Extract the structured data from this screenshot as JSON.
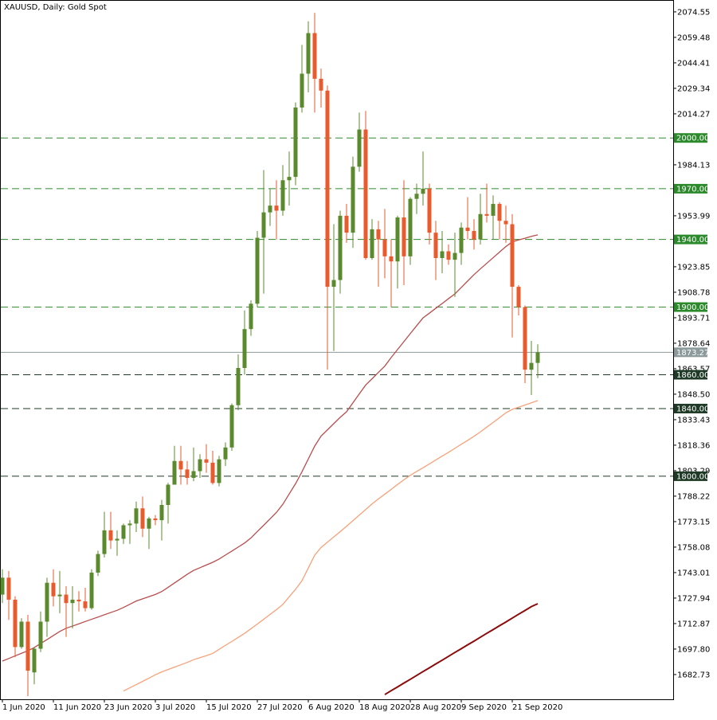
{
  "chart_data": {
    "type": "candlestick",
    "title": "XAUUSD, Daily:  Gold Spot",
    "categories": [
      "1 Jun 2020",
      null,
      null,
      null,
      null,
      null,
      null,
      null,
      "11 Jun 2020",
      null,
      null,
      null,
      null,
      null,
      null,
      null,
      "23 Jun 2020",
      null,
      null,
      null,
      null,
      null,
      null,
      null,
      "3 Jul 2020",
      null,
      null,
      null,
      null,
      null,
      null,
      null,
      "15 Jul 2020",
      null,
      null,
      null,
      null,
      null,
      null,
      null,
      "27 Jul 2020",
      null,
      null,
      null,
      null,
      null,
      null,
      null,
      "6 Aug 2020",
      null,
      null,
      null,
      null,
      null,
      null,
      null,
      "18 Aug 2020",
      null,
      null,
      null,
      null,
      null,
      null,
      null,
      "28 Aug 2020",
      null,
      null,
      null,
      null,
      null,
      null,
      null,
      "9 Sep 2020",
      null,
      null,
      null,
      null,
      null,
      null,
      null,
      "21 Sep 2020",
      null,
      null,
      null,
      null
    ],
    "open": [
      1730,
      1740,
      1727,
      1699,
      1714,
      1684,
      1698,
      1714,
      1737,
      1729,
      1730,
      1725,
      1727,
      1726,
      1722,
      1743,
      1754,
      1768,
      1762,
      1763,
      1771,
      1772,
      1781,
      1769,
      1775,
      1774,
      1783,
      1795,
      1809,
      1804,
      1799,
      1803,
      1810,
      1808,
      1796,
      1810,
      1817,
      1842,
      1864,
      1887,
      1902,
      1941,
      1956,
      1960,
      1957,
      1975,
      1977,
      2018,
      2038,
      2062,
      2035,
      2028,
      1912,
      1916,
      1954,
      1944,
      1983,
      2005,
      1929,
      1946,
      1940,
      1930,
      1927,
      1953,
      1930,
      1964,
      1967,
      1970,
      1944,
      1929,
      1933,
      1928,
      1932,
      1947,
      1945,
      1940,
      1955,
      1954,
      1961,
      1951,
      1949,
      1912,
      1900,
      1863,
      1867
    ],
    "high": [
      1745,
      1744,
      1729,
      1716,
      1718,
      1699,
      1720,
      1740,
      1745,
      1744,
      1735,
      1735,
      1732,
      1734,
      1745,
      1756,
      1779,
      1779,
      1768,
      1772,
      1774,
      1785,
      1788,
      1776,
      1777,
      1786,
      1796,
      1818,
      1818,
      1809,
      1817,
      1813,
      1819,
      1815,
      1812,
      1820,
      1843,
      1872,
      1898,
      1904,
      1945,
      1981,
      1970,
      1975,
      1984,
      1992,
      2021,
      2055,
      2069,
      2074,
      2041,
      2031,
      1949,
      1957,
      1961,
      1989,
      2015,
      2016,
      1952,
      1951,
      1958,
      1940,
      1954,
      1975,
      1965,
      1973,
      1992,
      1973,
      1951,
      1945,
      1937,
      1944,
      1950,
      1965,
      1952,
      1967,
      1973,
      1966,
      1962,
      1960,
      1955,
      1913,
      1901,
      1880,
      1878
    ],
    "low": [
      1725,
      1715,
      1693,
      1698,
      1670,
      1677,
      1696,
      1705,
      1723,
      1719,
      1705,
      1710,
      1720,
      1720,
      1721,
      1741,
      1752,
      1757,
      1753,
      1760,
      1760,
      1767,
      1764,
      1757,
      1771,
      1762,
      1772,
      1795,
      1795,
      1795,
      1797,
      1799,
      1802,
      1795,
      1794,
      1806,
      1815,
      1839,
      1860,
      1883,
      1900,
      1908,
      1948,
      1940,
      1954,
      1960,
      1972,
      2015,
      2027,
      2015,
      2018,
      1863,
      1874,
      1908,
      1938,
      1935,
      1980,
      1928,
      1928,
      1912,
      1917,
      1900,
      1911,
      1913,
      1925,
      1955,
      1960,
      1937,
      1916,
      1920,
      1925,
      1906,
      1925,
      1940,
      1934,
      1937,
      1950,
      1940,
      1940,
      1938,
      1882,
      1895,
      1855,
      1848,
      1858
    ],
    "close": [
      1740,
      1727,
      1699,
      1714,
      1685,
      1698,
      1714,
      1737,
      1729,
      1730,
      1725,
      1727,
      1726,
      1722,
      1743,
      1754,
      1768,
      1762,
      1763,
      1771,
      1772,
      1781,
      1769,
      1775,
      1774,
      1783,
      1795,
      1809,
      1804,
      1799,
      1803,
      1810,
      1808,
      1796,
      1810,
      1817,
      1842,
      1864,
      1887,
      1902,
      1941,
      1956,
      1960,
      1957,
      1975,
      1977,
      2018,
      2038,
      2062,
      2035,
      2028,
      1912,
      1916,
      1954,
      1944,
      1983,
      2005,
      1929,
      1946,
      1940,
      1930,
      1927,
      1953,
      1930,
      1964,
      1967,
      1970,
      1944,
      1929,
      1933,
      1928,
      1932,
      1947,
      1945,
      1940,
      1955,
      1954,
      1961,
      1951,
      1949,
      1912,
      1900,
      1863,
      1867,
      1873.27
    ],
    "up_color": "#5b8a2e",
    "down_color": "#ea5a2f",
    "lines": [
      {
        "color": "#b94d4d",
        "values": [
          1690.7,
          1692.2,
          1693.8,
          1695.3,
          1696.8,
          1698.7,
          1701.1,
          1703.4,
          1705.8,
          1708.2,
          1710.1,
          1711.4,
          1712.7,
          1714.1,
          1715.4,
          1716.7,
          1718.1,
          1719.4,
          1720.7,
          1722.4,
          1724.3,
          1726.2,
          1727.5,
          1728.8,
          1730.1,
          1731.8,
          1734.3,
          1736.9,
          1739.4,
          1742.0,
          1744.3,
          1745.9,
          1747.5,
          1749.1,
          1751.0,
          1753.4,
          1755.7,
          1758.1,
          1760.5,
          1763.5,
          1767.3,
          1771.0,
          1774.8,
          1778.6,
          1783.4,
          1789.5,
          1795.6,
          1802.6,
          1810.2,
          1817.8,
          1823.7,
          1827.4,
          1831.1,
          1834.8,
          1838.1,
          1843.4,
          1848.7,
          1853.9,
          1857.6,
          1861.4,
          1865.1,
          1870.2,
          1874.9,
          1879.6,
          1884.3,
          1889.0,
          1893.6,
          1896.4,
          1899.3,
          1902.1,
          1905.0,
          1907.8,
          1911.6,
          1915.4,
          1919.2,
          1922.6,
          1925.9,
          1929.2,
          1932.5,
          1935.8,
          1938.6,
          1939.7,
          1940.7,
          1941.8,
          1942.7
        ]
      },
      {
        "color": "#f7a27a",
        "values": [
          null,
          null,
          null,
          null,
          null,
          null,
          null,
          null,
          null,
          null,
          null,
          null,
          null,
          null,
          null,
          null,
          null,
          null,
          null,
          1673.0,
          1674.9,
          1676.8,
          1678.7,
          1680.6,
          1682.6,
          1684.3,
          1685.7,
          1687.1,
          1688.5,
          1689.9,
          1691.5,
          1692.7,
          1693.9,
          1695.2,
          1697.6,
          1700.0,
          1702.3,
          1704.7,
          1707.1,
          1709.8,
          1712.6,
          1715.4,
          1718.3,
          1721.1,
          1724.2,
          1728.7,
          1733.1,
          1738.2,
          1745.7,
          1753.3,
          1757.9,
          1761.0,
          1764.1,
          1767.2,
          1770.4,
          1773.7,
          1777.0,
          1780.3,
          1783.6,
          1786.6,
          1789.4,
          1792.2,
          1795.1,
          1797.9,
          1800.5,
          1802.8,
          1805.0,
          1807.3,
          1809.6,
          1811.9,
          1814.1,
          1816.5,
          1818.9,
          1821.2,
          1823.6,
          1826.2,
          1829.0,
          1831.8,
          1834.6,
          1837.5,
          1839.5,
          1840.8,
          1842.1,
          1843.4,
          1844.7
        ]
      },
      {
        "color": "#8b0a0a",
        "values": [
          null,
          null,
          null,
          null,
          null,
          null,
          null,
          null,
          null,
          null,
          null,
          null,
          null,
          null,
          null,
          null,
          null,
          null,
          null,
          null,
          null,
          null,
          null,
          null,
          null,
          null,
          null,
          null,
          null,
          null,
          null,
          null,
          null,
          null,
          null,
          null,
          null,
          null,
          null,
          null,
          null,
          null,
          null,
          null,
          null,
          null,
          null,
          null,
          null,
          null,
          null,
          null,
          null,
          null,
          null,
          null,
          null,
          null,
          null,
          null,
          1670.9,
          1673.2,
          1675.4,
          1677.7,
          1679.9,
          1682.2,
          1684.5,
          1686.7,
          1689.0,
          1691.2,
          1693.5,
          1695.8,
          1698.0,
          1700.3,
          1702.5,
          1704.8,
          1707.1,
          1709.3,
          1711.6,
          1713.8,
          1716.1,
          1718.4,
          1720.6,
          1722.9,
          1724.6
        ]
      }
    ],
    "levels": [
      {
        "value": 2000,
        "label": "2000.00",
        "color": "#2c8a2c"
      },
      {
        "value": 1970,
        "label": "1970.00",
        "color": "#2c8a2c"
      },
      {
        "value": 1940,
        "label": "1940.00",
        "color": "#2c8a2c"
      },
      {
        "value": 1900,
        "label": "1900.00",
        "color": "#2c8a2c"
      },
      {
        "value": 1860,
        "label": "1860.00",
        "color": "#1f3a26"
      },
      {
        "value": 1840,
        "label": "1840.00",
        "color": "#1f3a26"
      },
      {
        "value": 1800,
        "label": "1800.00",
        "color": "#1f3a26"
      }
    ],
    "current_price": 1873.27,
    "current_color": "#8c9a9b",
    "ylim": [
      1668.1,
      2081.1
    ],
    "yticks": [
      2074.55,
      2059.48,
      2044.41,
      2029.34,
      2014.27,
      1984.13,
      1953.99,
      1923.85,
      1908.78,
      1893.71,
      1878.64,
      1863.57,
      {
        "value": 1848.5,
        "label": "1848.50"
      },
      1833.43,
      1818.36,
      1803.29,
      1788.22,
      1773.15,
      1758.08,
      1743.01,
      1727.94,
      1712.87,
      {
        "value": 1697.8,
        "label": "1697.80"
      },
      1682.73
    ]
  }
}
